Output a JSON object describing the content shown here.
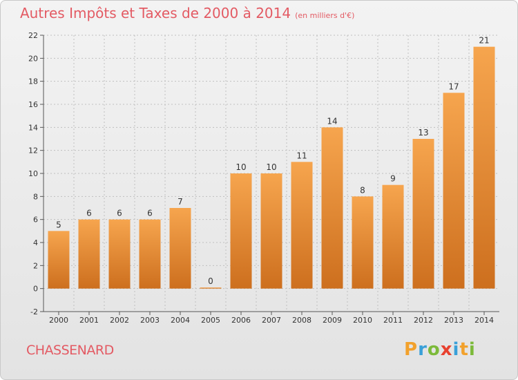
{
  "title": "Autres Impôts et Taxes de 2000 à 2014",
  "subtitle": "(en milliers d'€)",
  "commune": "CHASSENARD",
  "brand": {
    "letters": [
      "P",
      "r",
      "o",
      "x",
      "i",
      "t",
      "i"
    ],
    "colors": [
      "#f2a12c",
      "#3aa0d8",
      "#7cba3a",
      "#e8412f",
      "#3aa0d8",
      "#f2a12c",
      "#7cba3a"
    ]
  },
  "colors": {
    "title": "#e35a63",
    "bar_top": "#f6a54e",
    "bar_bottom": "#cd6f1e",
    "axis": "#555555",
    "grid": "#bfbfbf"
  },
  "chart_data": {
    "type": "bar",
    "title": "Autres Impôts et Taxes de 2000 à 2014",
    "subtitle": "(en milliers d'€)",
    "categories": [
      "2000",
      "2001",
      "2002",
      "2003",
      "2004",
      "2005",
      "2006",
      "2007",
      "2008",
      "2009",
      "2010",
      "2011",
      "2012",
      "2013",
      "2014"
    ],
    "values": [
      5,
      6,
      6,
      6,
      7,
      0,
      10,
      10,
      11,
      14,
      8,
      9,
      13,
      17,
      21
    ],
    "ylim": [
      -2,
      22
    ],
    "yticks": [
      -2,
      0,
      2,
      4,
      6,
      8,
      10,
      12,
      14,
      16,
      18,
      20,
      22
    ],
    "grid": true,
    "xlabel": "",
    "ylabel": ""
  }
}
